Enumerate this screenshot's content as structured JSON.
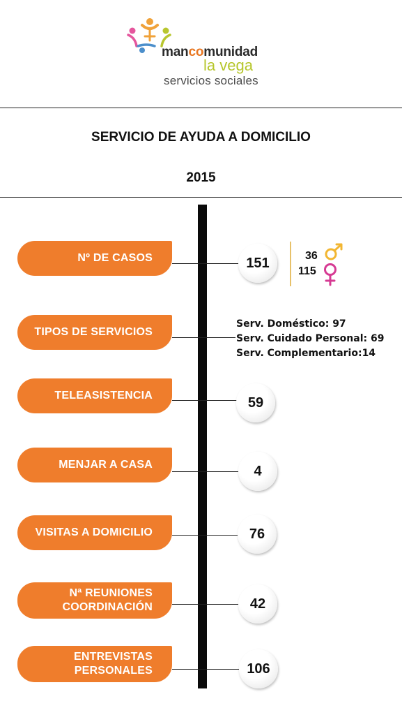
{
  "logo": {
    "line1_a": "man",
    "line1_b": "co",
    "line1_c": "munidad",
    "line2": "la vega",
    "line3": "servicios sociales"
  },
  "header": {
    "title": "SERVICIO  DE AYUDA A DOMICILIO",
    "year": "2015"
  },
  "items": [
    {
      "label": "Nº DE CASOS",
      "value": "151"
    },
    {
      "label": "TIPOS DE SERVICIOS"
    },
    {
      "label": "TELEASISTENCIA",
      "value": "59"
    },
    {
      "label": "MENJAR A CASA",
      "value": "4"
    },
    {
      "label": "VISITAS A DOMICILIO",
      "value": "76"
    },
    {
      "label_line1": "Nª REUNIONES",
      "label_line2": "COORDINACIÓN",
      "value": "42"
    },
    {
      "label_line1": "ENTREVISTAS",
      "label_line2": "PERSONALES",
      "value": "106"
    }
  ],
  "gender": {
    "male_count": "36",
    "female_count": "115",
    "male_icon": "male-symbol-icon",
    "female_icon": "female-symbol-icon",
    "male_color": "#f2b632",
    "female_color": "#d63a93"
  },
  "services": [
    "Serv. Doméstico: 97",
    "Serv. Cuidado Personal: 69",
    "Serv. Complementario:14"
  ],
  "colors": {
    "accent": "#ef7d2c",
    "spine": "#0a0a0a"
  }
}
